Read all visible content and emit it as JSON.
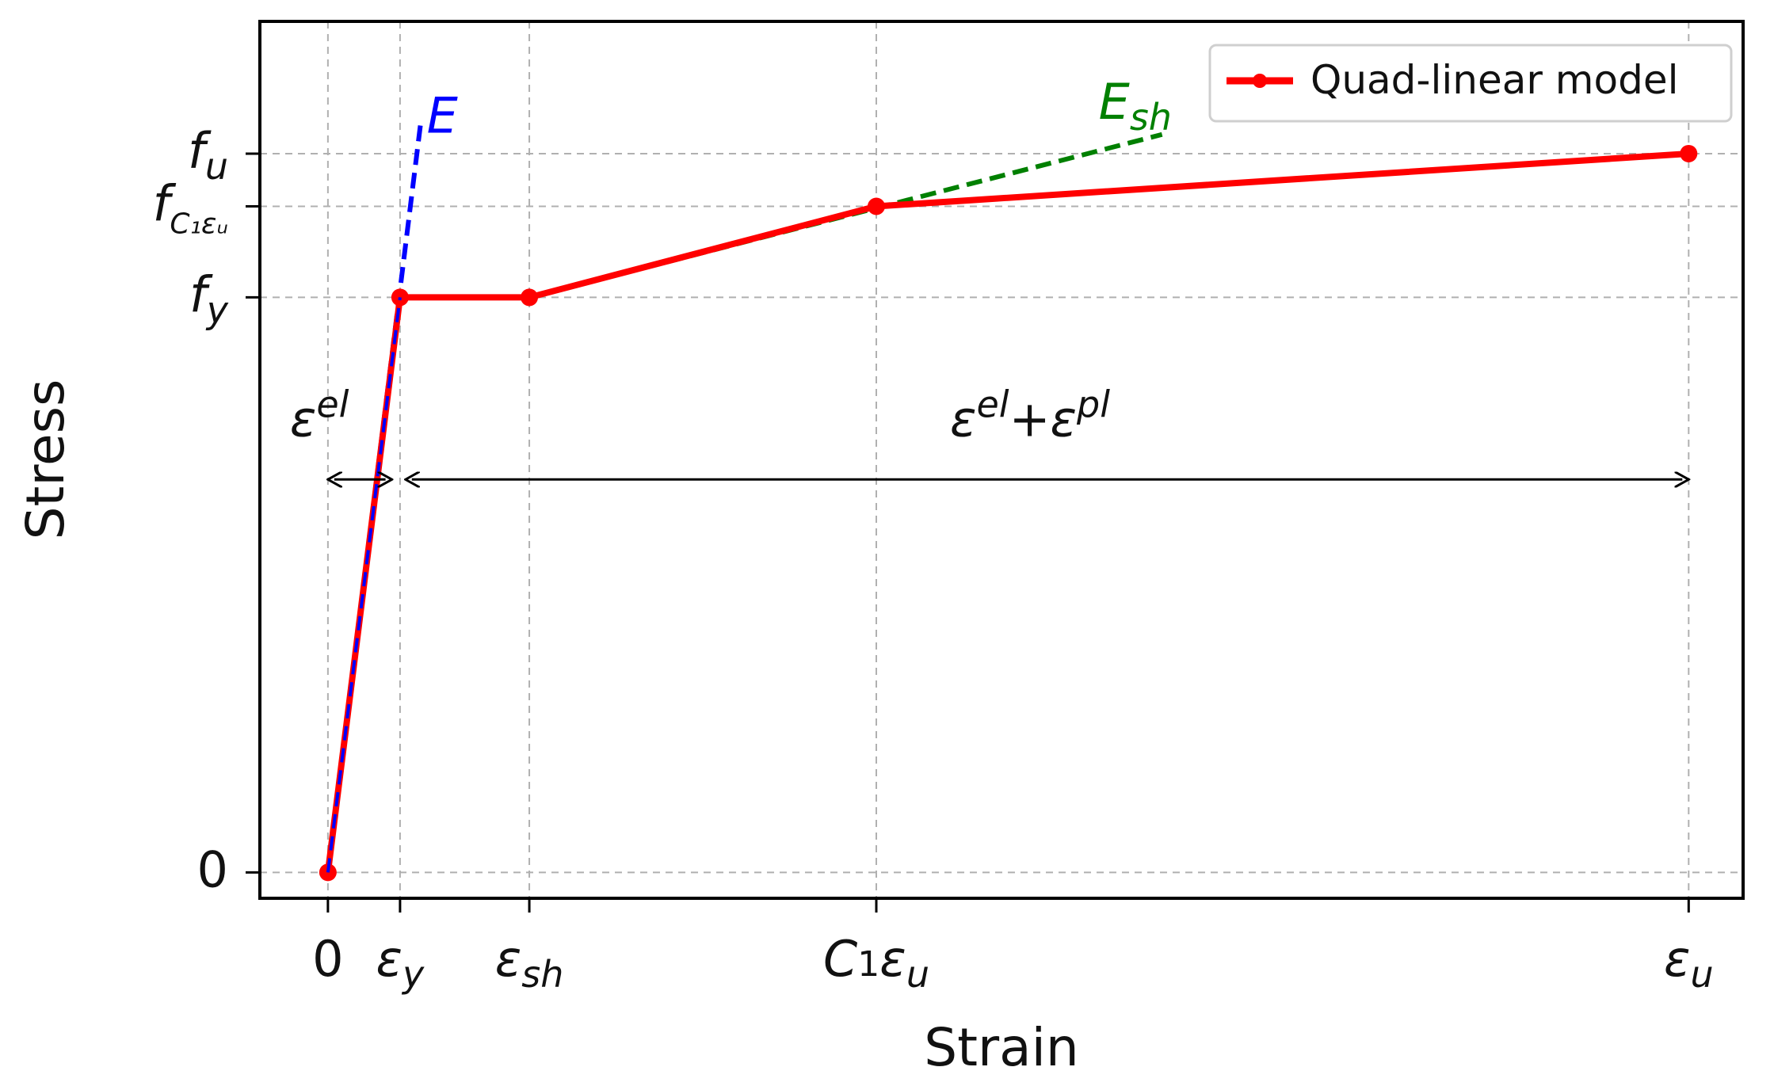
{
  "chart_data": {
    "type": "line",
    "xlabel": "Strain",
    "ylabel": "Stress",
    "x_ticks": [
      {
        "x": 0.0,
        "main": "0",
        "sub": ""
      },
      {
        "x": 0.053,
        "main": "ε",
        "sub": "y"
      },
      {
        "x": 0.148,
        "main": "ε",
        "sub": "sh"
      },
      {
        "x": 0.403,
        "main": "C₁ε",
        "sub": "u"
      },
      {
        "x": 1.0,
        "main": "ε",
        "sub": "u"
      }
    ],
    "y_ticks": [
      {
        "y": 0.0,
        "main": "0",
        "sub": ""
      },
      {
        "y": 0.6,
        "main": "f",
        "sub": "y"
      },
      {
        "y": 0.695,
        "main": "f",
        "sub": "C₁εᵤ"
      },
      {
        "y": 0.75,
        "main": "f",
        "sub": "u"
      }
    ],
    "xlim": [
      -0.05,
      1.04
    ],
    "ylim": [
      -0.027,
      0.888
    ],
    "grid": true,
    "legend_position": "top-right",
    "series": [
      {
        "name": "Quad-linear model",
        "color": "#ff0000",
        "x": [
          0.0,
          0.053,
          0.148,
          0.403,
          1.0
        ],
        "y": [
          0.0,
          0.6,
          0.6,
          0.695,
          0.75
        ]
      }
    ],
    "reference_lines": [
      {
        "label": "E",
        "color": "#0000ff",
        "x": [
          0.0,
          0.068
        ],
        "y": [
          0.0,
          0.78
        ]
      },
      {
        "label": "E",
        "label_sub": "sh",
        "color": "#008000",
        "x": [
          0.148,
          0.613
        ],
        "y": [
          0.6,
          0.77
        ]
      }
    ],
    "annotations": [
      {
        "main": "ε",
        "sup": "el",
        "x_from": 0.0,
        "x_to": 0.047,
        "y": 0.41
      },
      {
        "main": "ε",
        "sup": "el",
        "plus": "+",
        "main2": "ε",
        "sup2": "pl",
        "x_from": 0.057,
        "x_to": 1.0,
        "y": 0.41
      }
    ]
  }
}
